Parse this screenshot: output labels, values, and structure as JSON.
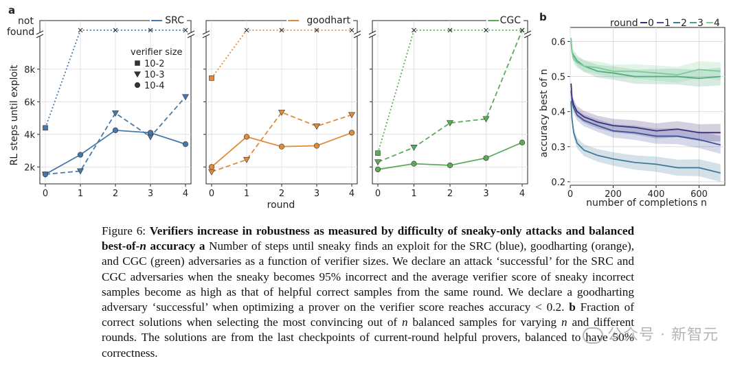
{
  "figure": {
    "panel_a_label": "a",
    "panel_b_label": "b",
    "ylabel_a": "RL steps until exploit",
    "xlabel_a": "round",
    "not_found_line1": "not",
    "not_found_line2": "found",
    "size_legend_title": "verifier size",
    "size_legend": [
      {
        "marker": "square",
        "label": "10-2"
      },
      {
        "marker": "triangle-down",
        "label": "10-3"
      },
      {
        "marker": "circle",
        "label": "10-4"
      }
    ],
    "ylabel_b": "accuracy best of n",
    "xlabel_b": "number of completions n",
    "round_legend_title": "round",
    "round_legend": [
      "0",
      "1",
      "2",
      "3",
      "4"
    ]
  },
  "chart_data": [
    {
      "type": "line",
      "title": "SRC",
      "color": "#4878a8",
      "xlabel": "round",
      "ylabel": "RL steps until exploit",
      "categories": [
        0,
        1,
        2,
        3,
        4
      ],
      "y_ticks": [
        "2k",
        "4k",
        "6k",
        "8k"
      ],
      "ylim": [
        1300,
        9800
      ],
      "not_found_value": "not found",
      "series": [
        {
          "name": "10-2",
          "style": "dotted",
          "marker": "square",
          "values": [
            4400,
            "not found",
            "not found",
            "not found",
            "not found"
          ]
        },
        {
          "name": "10-3",
          "style": "dashed",
          "marker": "triangle-down",
          "values": [
            1550,
            1750,
            5300,
            3850,
            6300
          ]
        },
        {
          "name": "10-4",
          "style": "solid",
          "marker": "circle",
          "values": [
            1550,
            2750,
            4250,
            4100,
            3400
          ]
        }
      ]
    },
    {
      "type": "line",
      "title": "goodhart",
      "color": "#e08a3c",
      "xlabel": "round",
      "categories": [
        0,
        1,
        2,
        3,
        4
      ],
      "ylim": [
        1300,
        9800
      ],
      "series": [
        {
          "name": "10-2",
          "style": "dotted",
          "marker": "square",
          "values": [
            7450,
            "not found",
            "not found",
            "not found",
            "not found"
          ]
        },
        {
          "name": "10-3",
          "style": "dashed",
          "marker": "triangle-down",
          "values": [
            1700,
            2450,
            5350,
            4500,
            5200
          ]
        },
        {
          "name": "10-4",
          "style": "solid",
          "marker": "circle",
          "values": [
            2000,
            3850,
            3250,
            3300,
            4100
          ]
        }
      ]
    },
    {
      "type": "line",
      "title": "CGC",
      "color": "#5aab5a",
      "xlabel": "round",
      "categories": [
        0,
        1,
        2,
        3,
        4
      ],
      "ylim": [
        1300,
        9800
      ],
      "series": [
        {
          "name": "10-2",
          "style": "dotted",
          "marker": "square",
          "values": [
            2850,
            "not found",
            "not found",
            "not found",
            "not found"
          ]
        },
        {
          "name": "10-3",
          "style": "dashed",
          "marker": "triangle-down",
          "values": [
            2300,
            3200,
            4700,
            4950,
            "not found"
          ]
        },
        {
          "name": "10-4",
          "style": "solid",
          "marker": "circle",
          "values": [
            1850,
            2200,
            2100,
            2550,
            3500
          ]
        }
      ]
    },
    {
      "type": "line",
      "title": "",
      "xlabel": "number of completions n",
      "ylabel": "accuracy best of n",
      "xlim": [
        0,
        720
      ],
      "ylim": [
        0.19,
        0.64
      ],
      "x_ticks": [
        0,
        200,
        400,
        600
      ],
      "y_ticks": [
        0.2,
        0.3,
        0.4,
        0.5,
        0.6
      ],
      "legend_title": "round",
      "series": [
        {
          "name": "0",
          "color": "#3a2a73",
          "x": [
            4,
            8,
            16,
            32,
            64,
            128,
            200,
            300,
            400,
            500,
            600,
            700
          ],
          "values": [
            0.48,
            0.44,
            0.42,
            0.4,
            0.385,
            0.37,
            0.36,
            0.355,
            0.345,
            0.35,
            0.34,
            0.34
          ]
        },
        {
          "name": "1",
          "color": "#41509a",
          "x": [
            4,
            8,
            16,
            32,
            64,
            128,
            200,
            300,
            400,
            500,
            600,
            700
          ],
          "values": [
            0.46,
            0.43,
            0.41,
            0.39,
            0.375,
            0.36,
            0.345,
            0.34,
            0.33,
            0.33,
            0.32,
            0.305
          ]
        },
        {
          "name": "2",
          "color": "#3f789a",
          "x": [
            4,
            8,
            16,
            32,
            64,
            128,
            200,
            300,
            400,
            500,
            600,
            700
          ],
          "values": [
            0.43,
            0.38,
            0.34,
            0.31,
            0.29,
            0.275,
            0.265,
            0.255,
            0.25,
            0.24,
            0.24,
            0.225
          ]
        },
        {
          "name": "3",
          "color": "#4aa37c",
          "x": [
            4,
            8,
            16,
            32,
            64,
            128,
            200,
            300,
            400,
            500,
            600,
            700
          ],
          "values": [
            0.6,
            0.57,
            0.56,
            0.545,
            0.53,
            0.515,
            0.51,
            0.5,
            0.5,
            0.5,
            0.495,
            0.5
          ]
        },
        {
          "name": "4",
          "color": "#7ccc96",
          "x": [
            4,
            8,
            16,
            32,
            64,
            128,
            200,
            300,
            400,
            500,
            600,
            700
          ],
          "values": [
            0.61,
            0.57,
            0.55,
            0.54,
            0.53,
            0.525,
            0.515,
            0.515,
            0.51,
            0.505,
            0.52,
            0.515
          ]
        }
      ]
    }
  ],
  "caption": {
    "fig_label": "Figure 6:",
    "bold_title": "Verifiers increase in robustness as measured by difficulty of sneaky-only attacks and balanced best-of-",
    "bold_n": "n",
    "bold_accuracy": "accuracy",
    "bold_a": "a",
    "text_a": "Number of steps until sneaky finds an exploit for the SRC (blue), goodharting (orange), and CGC (green) adversaries as a function of verifier sizes. We declare an attack ‘successful’ for the SRC and CGC adversaries when the sneaky becomes 95% incorrect and the average verifier score of sneaky incorrect samples become as high as that of helpful correct samples from the same round. We declare a goodharting adversary ‘successful’ when optimizing a prover on the verifier score reaches accuracy < 0.2.",
    "bold_b": "b",
    "text_b1": "Fraction of correct solutions when selecting the most convincing out of",
    "n_italic": "n",
    "text_b2": "balanced samples for varying",
    "n_italic2": "n",
    "text_b3": "and different rounds. The solutions are from the last checkpoints of current-round helpful provers, balanced to have 50% correctness."
  },
  "watermark": {
    "text": "公众号 · 新智元"
  }
}
